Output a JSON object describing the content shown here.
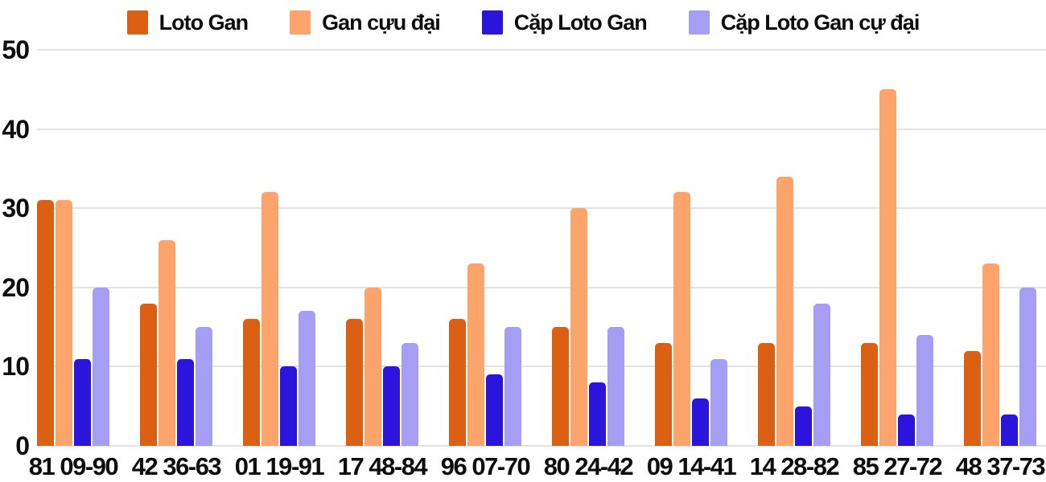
{
  "chart_data": {
    "type": "bar",
    "title": "",
    "xlabel": "",
    "ylabel": "",
    "ylim": [
      0,
      50
    ],
    "yticks": [
      0,
      10,
      20,
      30,
      40,
      50
    ],
    "grid": true,
    "legend_position": "top",
    "categories": [
      "81 09-90",
      "42 36-63",
      "01 19-91",
      "17 48-84",
      "96 07-70",
      "80 24-42",
      "09 14-41",
      "14 28-82",
      "85 27-72",
      "48 37-73"
    ],
    "series": [
      {
        "name": "Loto Gan",
        "color": "#dc6013",
        "values": [
          31,
          18,
          16,
          16,
          16,
          15,
          13,
          13,
          13,
          12
        ]
      },
      {
        "name": "Gan cựu đại",
        "color": "#fda46d",
        "values": [
          31,
          26,
          32,
          20,
          23,
          30,
          32,
          34,
          45,
          23
        ]
      },
      {
        "name": "Cặp Loto Gan",
        "color": "#2b14dc",
        "values": [
          11,
          11,
          10,
          10,
          9,
          8,
          6,
          5,
          4,
          4
        ]
      },
      {
        "name": "Cặp Loto Gan cự đại",
        "color": "#a69df5",
        "values": [
          20,
          15,
          17,
          13,
          15,
          15,
          11,
          18,
          14,
          20
        ]
      }
    ],
    "colors": {
      "grid": "#e3e3e3",
      "text": "#0d0d0d",
      "background": "#ffffff"
    }
  }
}
